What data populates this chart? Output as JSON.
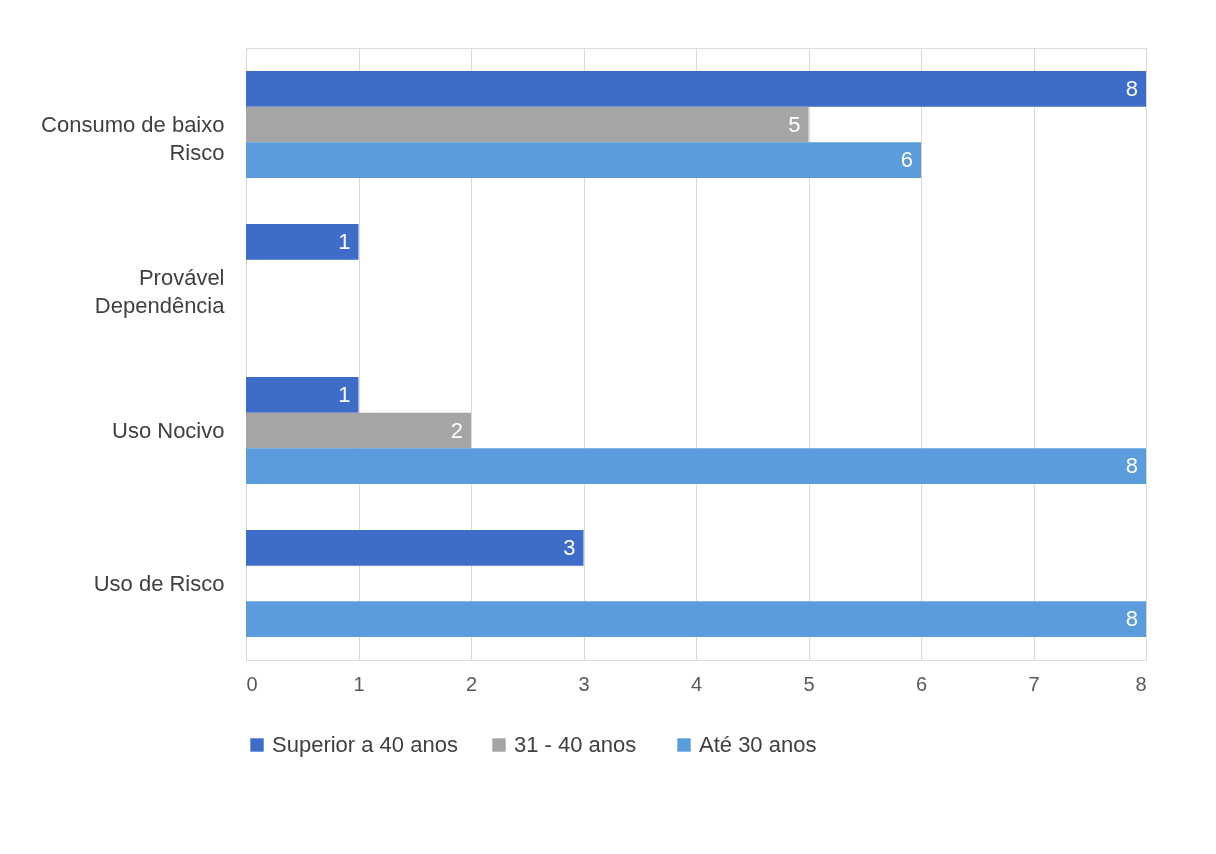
{
  "chart_data": {
    "type": "bar",
    "orientation": "horizontal",
    "categories": [
      "Consumo de baixo Risco",
      "Provável Dependência",
      "Uso Nocivo",
      "Uso de Risco"
    ],
    "series": [
      {
        "name": "Superior a 40 anos",
        "color": "#3e6cc9",
        "values": [
          8,
          1,
          1,
          3
        ]
      },
      {
        "name": "31 -  40 anos",
        "color": "#a5a5a5",
        "values": [
          5,
          null,
          2,
          null
        ]
      },
      {
        "name": "Até 30 anos",
        "color": "#5a9cdc",
        "values": [
          6,
          null,
          8,
          8
        ]
      }
    ],
    "xlim": [
      0,
      8
    ],
    "xticks": [
      0,
      1,
      2,
      3,
      4,
      5,
      6,
      7,
      8
    ],
    "grid": "x",
    "legend": "bottom",
    "data_labels": true
  }
}
